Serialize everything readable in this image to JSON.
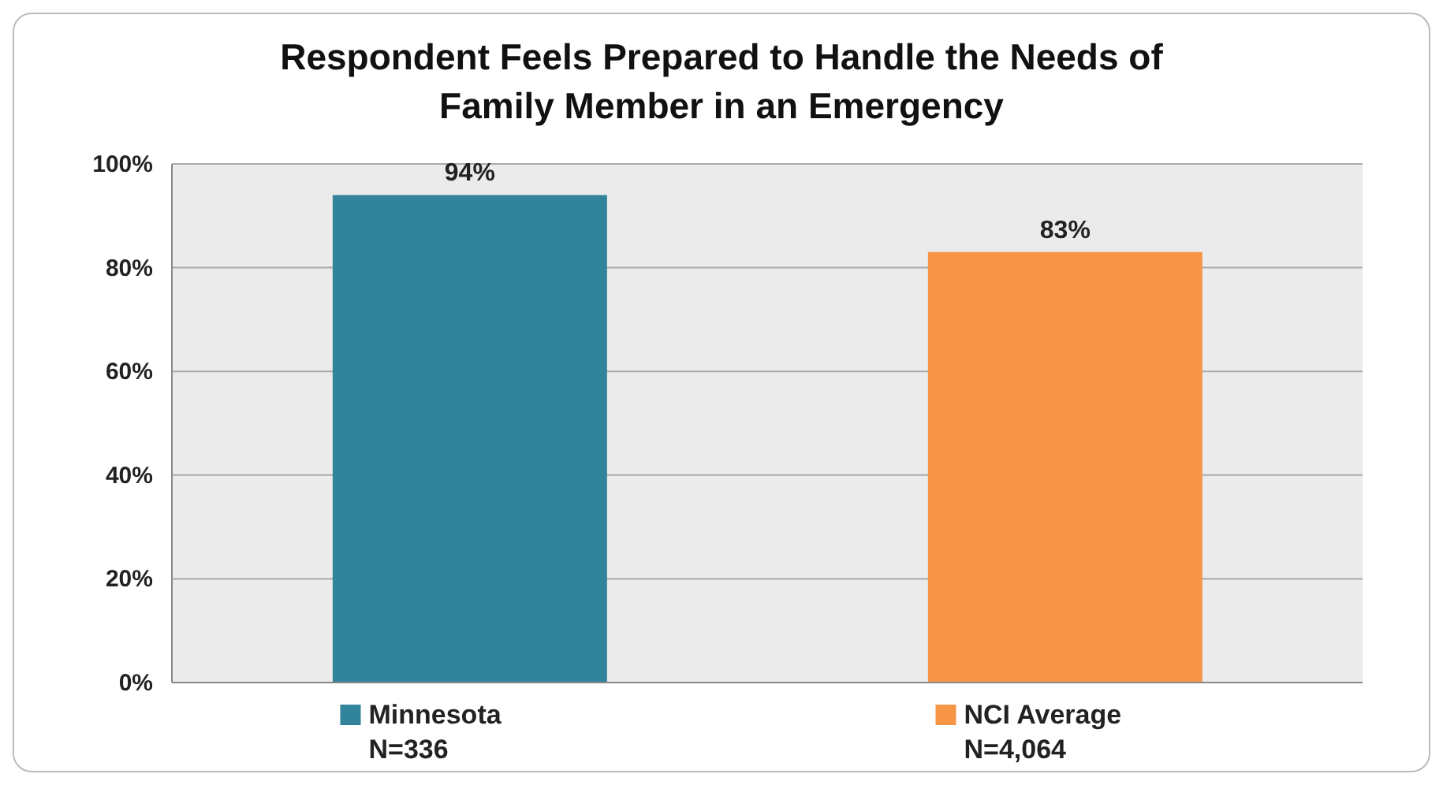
{
  "chart_data": {
    "type": "bar",
    "title": "Respondent Feels Prepared to Handle the Needs of\nFamily Member in an Emergency",
    "categories": [
      "Minnesota\nN=336",
      "NCI Average\nN=4,064"
    ],
    "values": [
      94,
      83
    ],
    "colors": [
      "#31849b",
      "#f79646"
    ],
    "value_labels": [
      "94%",
      "83%"
    ],
    "ylim": [
      0,
      100
    ],
    "yticks": [
      {
        "value": 0,
        "label": "0%"
      },
      {
        "value": 20,
        "label": "20%"
      },
      {
        "value": 40,
        "label": "40%"
      },
      {
        "value": 60,
        "label": "60%"
      },
      {
        "value": 80,
        "label": "80%"
      },
      {
        "value": 100,
        "label": "100%"
      }
    ],
    "grid": "y"
  }
}
